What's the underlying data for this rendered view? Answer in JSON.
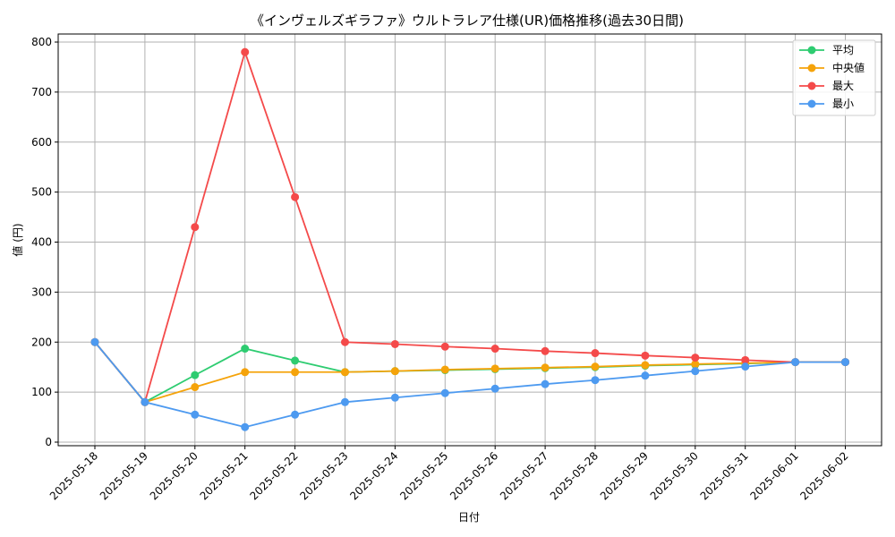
{
  "chart_data": {
    "type": "line",
    "title": "《インヴェルズギラファ》ウルトラレア仕様(UR)価格推移(過去30日間)",
    "xlabel": "日付",
    "ylabel": "値 (円)",
    "ylim": [
      0,
      800
    ],
    "yticks": [
      0,
      100,
      200,
      300,
      400,
      500,
      600,
      700,
      800
    ],
    "grid": true,
    "legend_position": "top-right",
    "categories": [
      "2025-05-18",
      "2025-05-19",
      "2025-05-20",
      "2025-05-21",
      "2025-05-22",
      "2025-05-23",
      "2025-05-24",
      "2025-05-25",
      "2025-05-26",
      "2025-05-27",
      "2025-05-28",
      "2025-05-29",
      "2025-05-30",
      "2025-05-31",
      "2025-06-01",
      "2025-06-02"
    ],
    "series": [
      {
        "name": "平均",
        "color": "#2ecc71",
        "values": [
          200,
          80,
          134,
          187,
          163,
          140,
          142,
          144,
          146,
          148,
          150,
          153,
          155,
          157,
          160,
          160
        ]
      },
      {
        "name": "中央値",
        "color": "#f5a30a",
        "values": [
          200,
          80,
          110,
          140,
          140,
          140,
          142,
          145,
          147,
          149,
          151,
          154,
          156,
          158,
          160,
          160
        ]
      },
      {
        "name": "最大",
        "color": "#f44a4a",
        "values": [
          200,
          80,
          430,
          780,
          490,
          200,
          196,
          191,
          187,
          182,
          178,
          173,
          169,
          164,
          160,
          160
        ]
      },
      {
        "name": "最小",
        "color": "#4d9af0",
        "values": [
          200,
          80,
          55,
          30,
          55,
          80,
          89,
          98,
          107,
          116,
          124,
          133,
          142,
          151,
          160,
          160
        ]
      }
    ]
  }
}
